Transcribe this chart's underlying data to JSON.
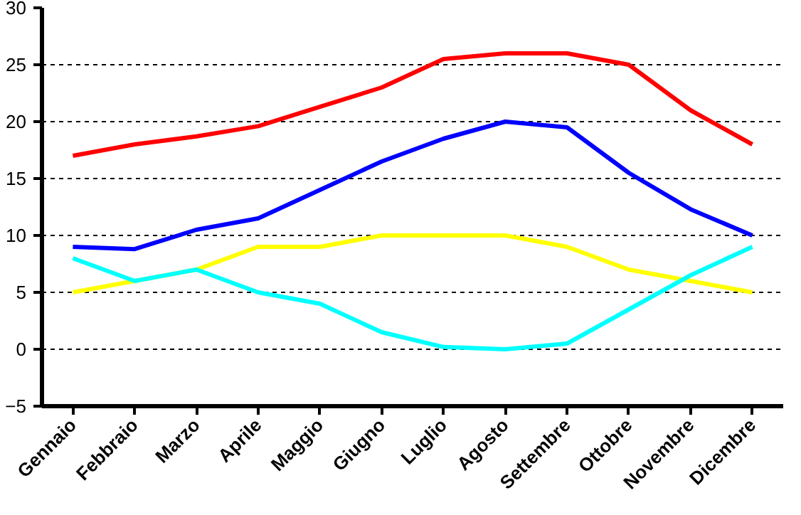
{
  "chart_data": {
    "type": "line",
    "categories": [
      "Gennaio",
      "Febbraio",
      "Marzo",
      "Aprile",
      "Maggio",
      "Giugno",
      "Luglio",
      "Agosto",
      "Settembre",
      "Ottobre",
      "Novembre",
      "Dicembre"
    ],
    "series": [
      {
        "color": "#ff0000",
        "values": [
          17,
          18,
          18.7,
          19.6,
          21.3,
          23,
          25.5,
          26,
          26,
          25,
          21,
          18
        ]
      },
      {
        "color": "#0000ff",
        "values": [
          9,
          8.8,
          10.5,
          11.5,
          14,
          16.5,
          18.5,
          20,
          19.5,
          15.5,
          12.3,
          10
        ]
      },
      {
        "color": "#ffff00",
        "values": [
          5,
          6,
          7,
          9,
          9,
          10,
          10,
          10,
          9,
          7,
          6,
          5
        ]
      },
      {
        "color": "#00ffff",
        "values": [
          8,
          6,
          7,
          5,
          4,
          1.5,
          0.2,
          0,
          0.5,
          3.5,
          6.5,
          9
        ]
      }
    ],
    "ylim": [
      -5,
      30
    ],
    "yticks": [
      -5,
      0,
      5,
      10,
      15,
      20,
      25,
      30
    ],
    "grid": "y",
    "marker": "none",
    "line_style": "solid"
  }
}
